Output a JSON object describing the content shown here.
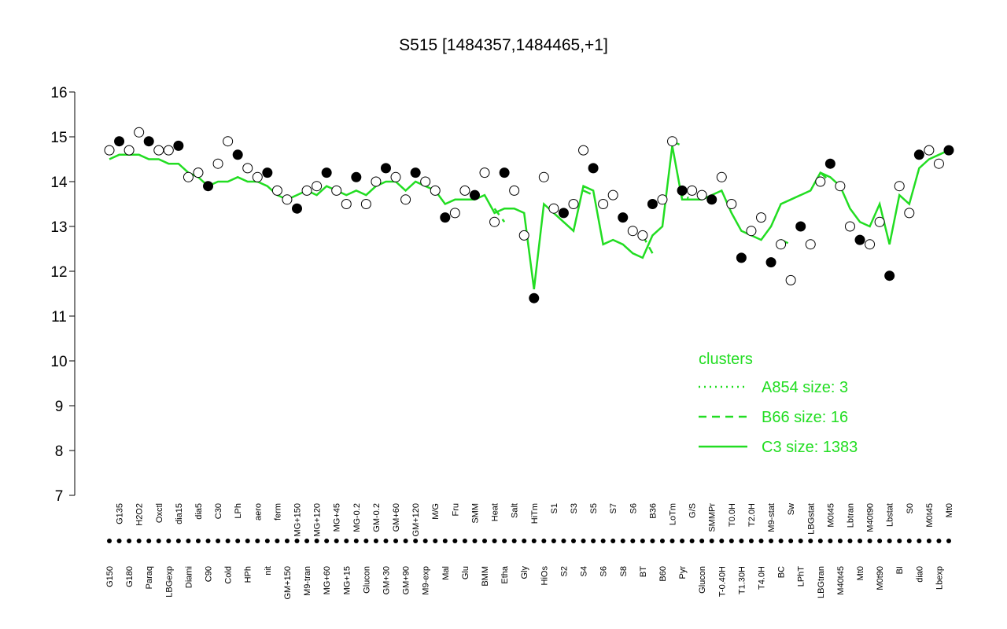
{
  "chart_data": {
    "type": "line",
    "title": "S515 [1484357,1484465,+1]",
    "categories": [
      "G150",
      "G135",
      "G180",
      "H2O2",
      "Paraq",
      "Oxctl",
      "LBGexp",
      "dia15",
      "Diami",
      "dia5",
      "C90",
      "C30",
      "Cold",
      "LPh",
      "HPh",
      "aero",
      "nit",
      "ferm",
      "GM+150",
      "MG+150",
      "M9-tran",
      "MG+120",
      "MG+60",
      "MG+45",
      "MG+15",
      "MG-0.2",
      "Glucon",
      "GM-0.2",
      "GM+30",
      "GM+60",
      "GM+90",
      "GM+120",
      "M9-exp",
      "M/G",
      "Mal",
      "Fru",
      "Glu",
      "SMM",
      "BMM",
      "Heat",
      "Etha",
      "Salt",
      "Gly",
      "HiTm",
      "HiOs",
      "S1",
      "S2",
      "S3",
      "S4",
      "S5",
      "S6",
      "S7",
      "S8",
      "S6",
      "BT",
      "B36",
      "B60",
      "LoTm",
      "Pyr",
      "G/S",
      "Glucon",
      "SMMPr",
      "T-0.40H",
      "T0.0H",
      "T1.30H",
      "T2.0H",
      "T4.0H",
      "M9-stat",
      "BC",
      "Sw",
      "LPhT",
      "LBGstat",
      "LBGtran",
      "M0t45",
      "M40t45",
      "Lbtran",
      "Mt0",
      "M40t90",
      "M0t90",
      "Lbstat",
      "BI",
      "S0",
      "dia0",
      "M0t45",
      "Lbexp",
      "Mt0"
    ],
    "values": [
      14.7,
      14.9,
      14.7,
      15.1,
      14.9,
      14.7,
      14.7,
      14.8,
      14.1,
      14.2,
      13.9,
      14.4,
      14.9,
      14.6,
      14.3,
      14.1,
      14.2,
      13.8,
      13.6,
      13.4,
      13.8,
      13.9,
      14.2,
      13.8,
      13.5,
      14.1,
      13.5,
      14.0,
      14.3,
      14.1,
      13.6,
      14.2,
      14.0,
      13.8,
      13.2,
      13.3,
      13.8,
      13.7,
      14.2,
      13.1,
      14.2,
      13.8,
      12.8,
      11.4,
      14.1,
      13.4,
      13.3,
      13.5,
      14.7,
      14.3,
      13.5,
      13.7,
      13.2,
      12.9,
      12.8,
      13.5,
      13.6,
      14.9,
      13.8,
      13.8,
      13.7,
      13.6,
      14.1,
      13.5,
      12.3,
      12.9,
      13.2,
      12.2,
      12.6,
      11.8,
      13.0,
      12.6,
      14.0,
      14.4,
      13.9,
      13.0,
      12.7,
      12.6,
      13.1,
      11.9,
      13.9,
      13.3,
      14.6,
      14.7,
      14.4,
      14.7
    ],
    "series": [
      {
        "name": "A854 size: 3",
        "color": "#22dd22",
        "dash": "dotted",
        "values": [
          null,
          null,
          null,
          null,
          null,
          null,
          null,
          null,
          null,
          null,
          null,
          null,
          null,
          null,
          null,
          null,
          null,
          null,
          null,
          null,
          null,
          null,
          null,
          null,
          null,
          null,
          null,
          null,
          null,
          null,
          null,
          null,
          null,
          null,
          null,
          null,
          null,
          null,
          null,
          null,
          null,
          null,
          null,
          null,
          null,
          null,
          null,
          null,
          null,
          null,
          null,
          null,
          null,
          null,
          null,
          null,
          null,
          null,
          13.7,
          13.6,
          null,
          null,
          null,
          null,
          null,
          null,
          null,
          null,
          null,
          null,
          null,
          null,
          null,
          null,
          null,
          null,
          null,
          null,
          null,
          null,
          null,
          null,
          null,
          null,
          null,
          null
        ]
      },
      {
        "name": "B66 size: 16",
        "color": "#22dd22",
        "dash": "dashed",
        "values": [
          null,
          null,
          null,
          null,
          null,
          null,
          null,
          null,
          null,
          null,
          null,
          null,
          null,
          null,
          null,
          null,
          null,
          null,
          null,
          null,
          null,
          null,
          null,
          null,
          null,
          null,
          null,
          null,
          null,
          null,
          null,
          null,
          null,
          null,
          null,
          null,
          null,
          null,
          null,
          13.4,
          13.1,
          null,
          null,
          null,
          null,
          null,
          null,
          null,
          13.8,
          13.7,
          null,
          null,
          null,
          null,
          12.8,
          12.4,
          null,
          14.9,
          14.8,
          null,
          null,
          null,
          null,
          null,
          null,
          null,
          null,
          null,
          12.7,
          12.6,
          null,
          null,
          14.2,
          14.0,
          null,
          null,
          null,
          null,
          null,
          null,
          null,
          null,
          null,
          null,
          null,
          null
        ]
      },
      {
        "name": "C3 size: 1383",
        "color": "#22dd22",
        "dash": "solid",
        "values": [
          14.5,
          14.6,
          14.6,
          14.6,
          14.5,
          14.5,
          14.4,
          14.4,
          14.2,
          14.1,
          13.9,
          14.0,
          14.0,
          14.1,
          14.0,
          14.0,
          13.9,
          13.7,
          13.6,
          13.7,
          13.8,
          13.7,
          13.9,
          13.8,
          13.7,
          13.8,
          13.7,
          13.9,
          14.0,
          14.0,
          13.8,
          14.0,
          13.9,
          13.8,
          13.5,
          13.6,
          13.6,
          13.6,
          13.7,
          13.3,
          13.4,
          13.4,
          13.3,
          11.6,
          13.5,
          13.3,
          13.1,
          12.9,
          13.9,
          13.8,
          12.6,
          12.7,
          12.6,
          12.4,
          12.3,
          12.8,
          13.0,
          14.8,
          13.6,
          13.6,
          13.6,
          13.7,
          13.8,
          13.3,
          12.9,
          12.8,
          12.7,
          13.0,
          13.5,
          13.6,
          13.7,
          13.8,
          14.2,
          14.1,
          13.9,
          13.4,
          13.1,
          13.0,
          13.5,
          12.6,
          13.7,
          13.5,
          14.3,
          14.5,
          14.6,
          14.7
        ]
      }
    ],
    "legend_title": "clusters",
    "ylim": [
      7,
      16
    ],
    "yticks": [
      7,
      8,
      9,
      10,
      11,
      12,
      13,
      14,
      15,
      16
    ]
  }
}
